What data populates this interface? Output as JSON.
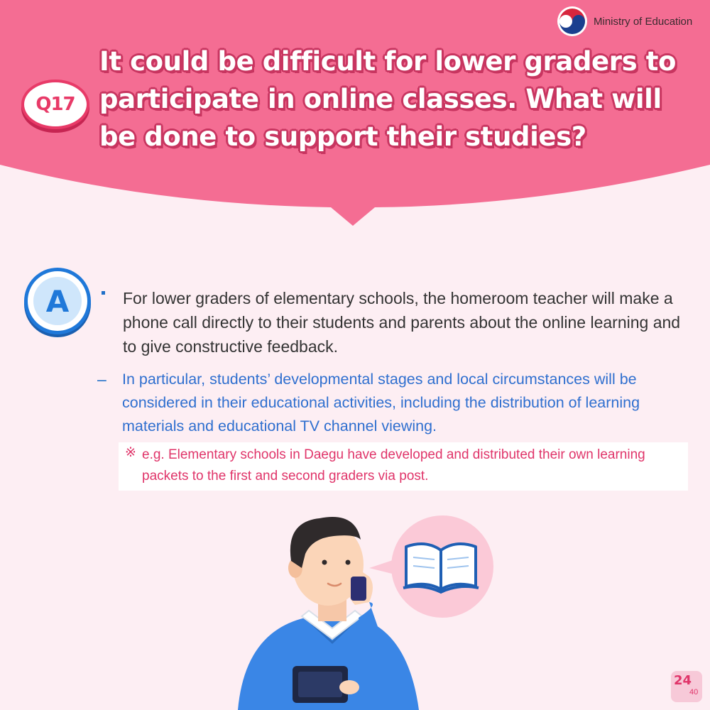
{
  "brand": {
    "ministry_name": "Ministry of Education"
  },
  "question": {
    "number": "Q17",
    "text": "It could be difficult for lower graders to participate in online classes. What will be done to support their studies?"
  },
  "answer": {
    "label": "A",
    "main": "For lower graders of elementary schools, the homeroom teacher will make a phone call directly to their students and parents about the online learning and to give constructive feedback.",
    "sub_marker": "–",
    "sub": "In particular, students’ developmental stages and local circumstances will be considered in their educational activities, including the distribution of learning materials and educational TV channel viewing.",
    "note_marker": "※",
    "note": "e.g. Elementary schools in Daegu have developed and distributed their own learning packets to the first and second graders via post."
  },
  "page": {
    "current": "24",
    "total": "40"
  },
  "colors": {
    "header_pink": "#f46d93",
    "background": "#fdeef3",
    "accent_blue": "#1f78d9",
    "accent_pink": "#e0356a"
  },
  "icons": [
    "taegeuk-logo-icon",
    "book-icon"
  ]
}
